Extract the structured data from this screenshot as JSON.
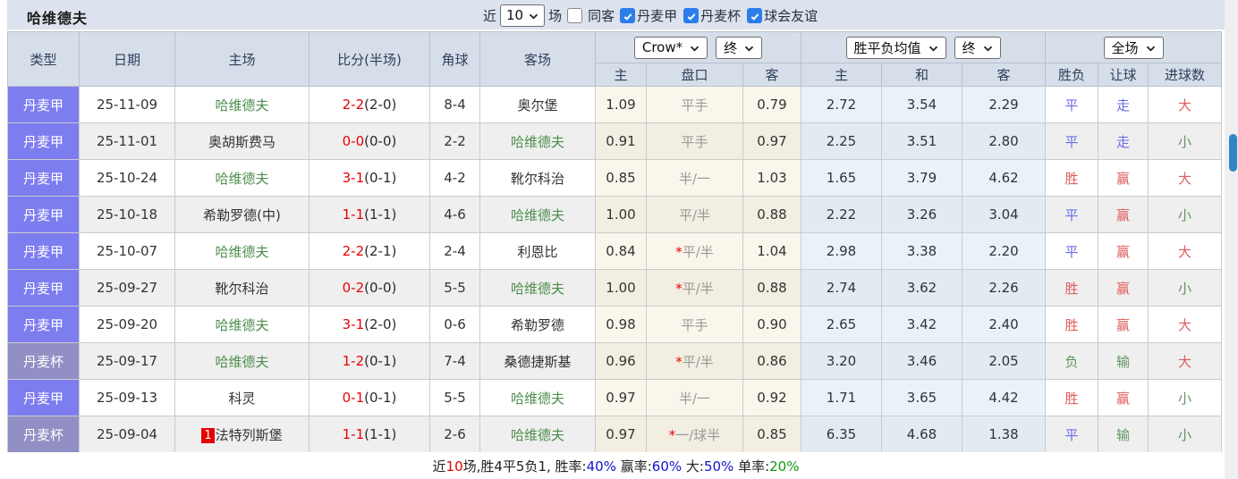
{
  "title": "哈维德夫",
  "toolbar": {
    "recent_label": "近",
    "recent_value": "10",
    "games_label": "场",
    "same_opponent_label": "同客",
    "leagues": [
      {
        "label": "丹麦甲",
        "checked": true
      },
      {
        "label": "丹麦杯",
        "checked": true
      },
      {
        "label": "球会友谊",
        "checked": true
      }
    ]
  },
  "table": {
    "headers": {
      "main": [
        "类型",
        "日期",
        "主场",
        "比分(半场)",
        "角球",
        "客场"
      ],
      "sub": [
        "主",
        "盘口",
        "客",
        "主",
        "和",
        "客",
        "胜负",
        "让球",
        "进球数"
      ]
    },
    "selects": {
      "company": "Crow*",
      "company_time": "终",
      "average": "胜平负均值",
      "average_time": "终",
      "scope": "全场"
    },
    "rows": [
      {
        "type": "丹麦甲",
        "type_class": "league",
        "date": "25-11-09",
        "home_badge": "",
        "home": "哈维德夫",
        "home_color": "team-green",
        "score": "2-2",
        "half": "(2-0)",
        "corner": "8-4",
        "away": "奥尔堡",
        "away_color": "team-dark",
        "odds_home": "1.09",
        "handicap_star": "",
        "handicap": "平手",
        "odds_away": "0.79",
        "avg_home": "2.72",
        "avg_draw": "3.54",
        "avg_away": "2.29",
        "result": "平",
        "result_color": "blue",
        "handicap_result": "走",
        "handicap_result_color": "blue",
        "goals": "大",
        "goals_color": "red"
      },
      {
        "type": "丹麦甲",
        "type_class": "league",
        "date": "25-11-01",
        "home_badge": "",
        "home": "奥胡斯费马",
        "home_color": "team-dark",
        "score": "0-0",
        "half": "(0-0)",
        "corner": "2-2",
        "away": "哈维德夫",
        "away_color": "team-green",
        "odds_home": "0.91",
        "handicap_star": "",
        "handicap": "平手",
        "odds_away": "0.97",
        "avg_home": "2.25",
        "avg_draw": "3.51",
        "avg_away": "2.80",
        "result": "平",
        "result_color": "blue",
        "handicap_result": "走",
        "handicap_result_color": "blue",
        "goals": "小",
        "goals_color": "green"
      },
      {
        "type": "丹麦甲",
        "type_class": "league",
        "date": "25-10-24",
        "home_badge": "",
        "home": "哈维德夫",
        "home_color": "team-green",
        "score": "3-1",
        "half": "(0-1)",
        "corner": "4-2",
        "away": "靴尔科治",
        "away_color": "team-dark",
        "odds_home": "0.85",
        "handicap_star": "",
        "handicap": "半/一",
        "odds_away": "1.03",
        "avg_home": "1.65",
        "avg_draw": "3.79",
        "avg_away": "4.62",
        "result": "胜",
        "result_color": "red",
        "handicap_result": "赢",
        "handicap_result_color": "red",
        "goals": "大",
        "goals_color": "red"
      },
      {
        "type": "丹麦甲",
        "type_class": "league",
        "date": "25-10-18",
        "home_badge": "",
        "home": "希勒罗德(中)",
        "home_color": "team-dark",
        "score": "1-1",
        "half": "(1-1)",
        "corner": "4-6",
        "away": "哈维德夫",
        "away_color": "team-green",
        "odds_home": "1.00",
        "handicap_star": "",
        "handicap": "平/半",
        "odds_away": "0.88",
        "avg_home": "2.22",
        "avg_draw": "3.26",
        "avg_away": "3.04",
        "result": "平",
        "result_color": "blue",
        "handicap_result": "赢",
        "handicap_result_color": "red",
        "goals": "小",
        "goals_color": "green"
      },
      {
        "type": "丹麦甲",
        "type_class": "league",
        "date": "25-10-07",
        "home_badge": "",
        "home": "哈维德夫",
        "home_color": "team-green",
        "score": "2-2",
        "half": "(2-1)",
        "corner": "2-4",
        "away": "利恩比",
        "away_color": "team-dark",
        "odds_home": "0.84",
        "handicap_star": "*",
        "handicap": "平/半",
        "odds_away": "1.04",
        "avg_home": "2.98",
        "avg_draw": "3.38",
        "avg_away": "2.20",
        "result": "平",
        "result_color": "blue",
        "handicap_result": "赢",
        "handicap_result_color": "red",
        "goals": "大",
        "goals_color": "red"
      },
      {
        "type": "丹麦甲",
        "type_class": "league",
        "date": "25-09-27",
        "home_badge": "",
        "home": "靴尔科治",
        "home_color": "team-dark",
        "score": "0-2",
        "half": "(0-0)",
        "corner": "5-5",
        "away": "哈维德夫",
        "away_color": "team-green",
        "odds_home": "1.00",
        "handicap_star": "*",
        "handicap": "平/半",
        "odds_away": "0.88",
        "avg_home": "2.74",
        "avg_draw": "3.62",
        "avg_away": "2.26",
        "result": "胜",
        "result_color": "red",
        "handicap_result": "赢",
        "handicap_result_color": "red",
        "goals": "小",
        "goals_color": "green"
      },
      {
        "type": "丹麦甲",
        "type_class": "league",
        "date": "25-09-20",
        "home_badge": "",
        "home": "哈维德夫",
        "home_color": "team-green",
        "score": "3-1",
        "half": "(2-0)",
        "corner": "0-6",
        "away": "希勒罗德",
        "away_color": "team-dark",
        "odds_home": "0.98",
        "handicap_star": "",
        "handicap": "平手",
        "odds_away": "0.90",
        "avg_home": "2.65",
        "avg_draw": "3.42",
        "avg_away": "2.40",
        "result": "胜",
        "result_color": "red",
        "handicap_result": "赢",
        "handicap_result_color": "red",
        "goals": "大",
        "goals_color": "red"
      },
      {
        "type": "丹麦杯",
        "type_class": "cup",
        "date": "25-09-17",
        "home_badge": "",
        "home": "哈维德夫",
        "home_color": "team-green",
        "score": "1-2",
        "half": "(0-1)",
        "corner": "7-4",
        "away": "桑德捷斯基",
        "away_color": "team-dark",
        "odds_home": "0.96",
        "handicap_star": "*",
        "handicap": "平/半",
        "odds_away": "0.86",
        "avg_home": "3.20",
        "avg_draw": "3.46",
        "avg_away": "2.05",
        "result": "负",
        "result_color": "green",
        "handicap_result": "输",
        "handicap_result_color": "green",
        "goals": "大",
        "goals_color": "red"
      },
      {
        "type": "丹麦甲",
        "type_class": "league",
        "date": "25-09-13",
        "home_badge": "",
        "home": "科灵",
        "home_color": "team-dark",
        "score": "0-1",
        "half": "(0-1)",
        "corner": "5-5",
        "away": "哈维德夫",
        "away_color": "team-green",
        "odds_home": "0.97",
        "handicap_star": "",
        "handicap": "半/一",
        "odds_away": "0.92",
        "avg_home": "1.71",
        "avg_draw": "3.65",
        "avg_away": "4.42",
        "result": "胜",
        "result_color": "red",
        "handicap_result": "赢",
        "handicap_result_color": "red",
        "goals": "小",
        "goals_color": "green"
      },
      {
        "type": "丹麦杯",
        "type_class": "cup",
        "date": "25-09-04",
        "home_badge": "1",
        "home": "法特列斯堡",
        "home_color": "team-dark",
        "score": "1-1",
        "half": "(1-1)",
        "corner": "2-6",
        "away": "哈维德夫",
        "away_color": "team-green",
        "odds_home": "0.97",
        "handicap_star": "*",
        "handicap": "一/球半",
        "odds_away": "0.85",
        "avg_home": "6.35",
        "avg_draw": "4.68",
        "avg_away": "1.38",
        "result": "平",
        "result_color": "blue",
        "handicap_result": "输",
        "handicap_result_color": "green",
        "goals": "小",
        "goals_color": "green"
      }
    ]
  },
  "footer": {
    "parts": [
      {
        "text": "近",
        "color": "dark"
      },
      {
        "text": "10",
        "color": "red"
      },
      {
        "text": "场,胜4平5负1, 胜率:",
        "color": "dark"
      },
      {
        "text": "40%",
        "color": "blue"
      },
      {
        "text": " 赢率:",
        "color": "dark"
      },
      {
        "text": "60%",
        "color": "blue"
      },
      {
        "text": " 大:",
        "color": "dark"
      },
      {
        "text": "50%",
        "color": "blue"
      },
      {
        "text": " 单率:",
        "color": "dark"
      },
      {
        "text": "20%",
        "color": "green"
      }
    ]
  },
  "colors": {
    "topbar_bg": "#dde3ee",
    "header_bg": "#d6dee9",
    "league_tag": "#7e7df0",
    "cup_tag": "#918fc4",
    "checkbox_checked": "#2b7de9",
    "score_red": "#e60000",
    "team_green": "#4d8e4d",
    "result_red": "#e05c5c",
    "result_blue": "#6b6be8",
    "result_green": "#5f945f",
    "odds_cell_bg": "#fbf6ec",
    "avg_cell_bg": "#e9f2f8",
    "scrollbar_thumb": "#2e86c8"
  }
}
